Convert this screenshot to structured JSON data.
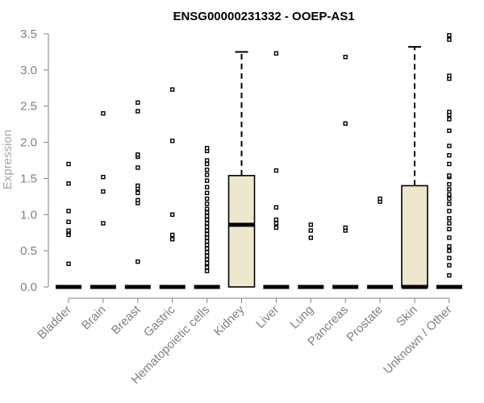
{
  "chart_data": {
    "type": "box",
    "title": "ENSG00000231332 - OOEP-AS1",
    "xlabel": "",
    "ylabel": "Expression",
    "ylim": [
      0,
      3.5
    ],
    "yticks": [
      "0.0",
      "0.5",
      "1.0",
      "1.5",
      "2.0",
      "2.5",
      "3.0",
      "3.5"
    ],
    "box_fill": "#ede7cd",
    "categories": [
      "Bladder",
      "Brain",
      "Breast",
      "Gastric",
      "Hematopoietic cells",
      "Kidney",
      "Liver",
      "Lung",
      "Pancreas",
      "Prostate",
      "Skin",
      "Unknown / Other"
    ],
    "boxes": [
      {
        "category": "Bladder",
        "min": 0,
        "q1": 0,
        "median": 0,
        "q3": 0,
        "max": 0,
        "outliers": [
          0.32,
          0.72,
          0.76,
          0.78,
          0.9,
          1.05,
          1.43,
          1.7
        ]
      },
      {
        "category": "Brain",
        "min": 0,
        "q1": 0,
        "median": 0,
        "q3": 0,
        "max": 0,
        "outliers": [
          0.88,
          1.32,
          1.52,
          2.4
        ]
      },
      {
        "category": "Breast",
        "min": 0,
        "q1": 0,
        "median": 0,
        "q3": 0,
        "max": 0,
        "outliers": [
          0.35,
          1.16,
          1.2,
          1.3,
          1.36,
          1.4,
          1.65,
          1.8,
          1.83,
          2.43,
          2.55
        ]
      },
      {
        "category": "Gastric",
        "min": 0,
        "q1": 0,
        "median": 0,
        "q3": 0,
        "max": 0,
        "outliers": [
          0.66,
          0.72,
          1.0,
          2.02,
          2.73
        ]
      },
      {
        "category": "Hematopoietic cells",
        "min": 0,
        "q1": 0,
        "median": 0,
        "q3": 0,
        "max": 0,
        "outliers": [
          0.22,
          0.27,
          0.33,
          0.38,
          0.43,
          0.48,
          0.53,
          0.58,
          0.63,
          0.68,
          0.73,
          0.78,
          0.83,
          0.88,
          0.93,
          0.98,
          1.03,
          1.08,
          1.15,
          1.22,
          1.3,
          1.38,
          1.47,
          1.55,
          1.62,
          1.7,
          1.75,
          1.88,
          1.92
        ]
      },
      {
        "category": "Kidney",
        "min": 0,
        "q1": 0,
        "median": 0.86,
        "q3": 1.54,
        "max": 3.25,
        "outliers": []
      },
      {
        "category": "Liver",
        "min": 0,
        "q1": 0,
        "median": 0,
        "q3": 0,
        "max": 0,
        "outliers": [
          0.82,
          0.88,
          0.93,
          1.1,
          1.61,
          3.23
        ]
      },
      {
        "category": "Lung",
        "min": 0,
        "q1": 0,
        "median": 0,
        "q3": 0,
        "max": 0,
        "outliers": [
          0.68,
          0.78,
          0.86
        ]
      },
      {
        "category": "Pancreas",
        "min": 0,
        "q1": 0,
        "median": 0,
        "q3": 0,
        "max": 0,
        "outliers": [
          0.78,
          0.82,
          2.26,
          3.18
        ]
      },
      {
        "category": "Prostate",
        "min": 0,
        "q1": 0,
        "median": 0,
        "q3": 0,
        "max": 0,
        "outliers": [
          1.18,
          1.22
        ]
      },
      {
        "category": "Skin",
        "min": 0,
        "q1": 0,
        "median": 0,
        "q3": 1.4,
        "max": 3.32,
        "outliers": []
      },
      {
        "category": "Unknown / Other",
        "min": 0,
        "q1": 0,
        "median": 0,
        "q3": 0,
        "max": 0,
        "outliers": [
          0.16,
          0.3,
          0.4,
          0.5,
          0.56,
          0.68,
          0.8,
          0.88,
          0.95,
          1.05,
          1.15,
          1.22,
          1.28,
          1.35,
          1.42,
          1.52,
          1.54,
          1.7,
          1.82,
          1.95,
          2.16,
          2.32,
          2.38,
          2.42,
          2.88,
          2.92,
          3.42,
          3.48
        ]
      }
    ]
  }
}
